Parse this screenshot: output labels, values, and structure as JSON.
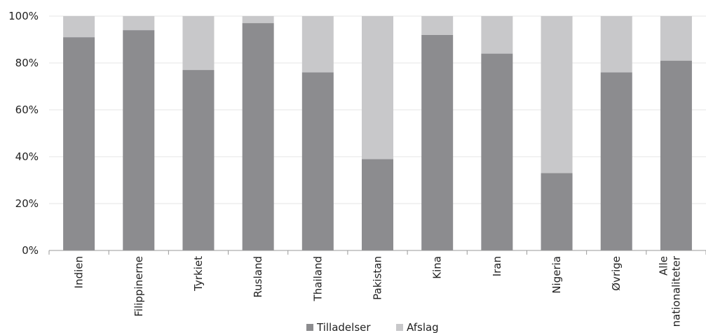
{
  "chart_data": {
    "type": "bar",
    "stacked": true,
    "percent": true,
    "categories": [
      [
        "Indien"
      ],
      [
        "Filippinerne"
      ],
      [
        "Tyrkiet"
      ],
      [
        "Rusland"
      ],
      [
        "Thailand"
      ],
      [
        "Pakistan"
      ],
      [
        "Kina"
      ],
      [
        "Iran"
      ],
      [
        "Nigeria"
      ],
      [
        "Øvrige"
      ],
      [
        "Alle",
        "nationaliteter"
      ]
    ],
    "series": [
      {
        "name": "Tilladelser",
        "color": "#8c8c8f",
        "values": [
          91,
          94,
          77,
          97,
          76,
          39,
          92,
          84,
          33,
          76,
          81
        ]
      },
      {
        "name": "Afslag",
        "color": "#c8c8ca",
        "values": [
          9,
          6,
          23,
          3,
          24,
          61,
          8,
          16,
          67,
          24,
          19
        ]
      }
    ],
    "ylim": [
      0,
      100
    ],
    "yticks": [
      "0%",
      "20%",
      "40%",
      "60%",
      "80%",
      "100%"
    ],
    "grid": true,
    "legend": "bottom-center"
  }
}
